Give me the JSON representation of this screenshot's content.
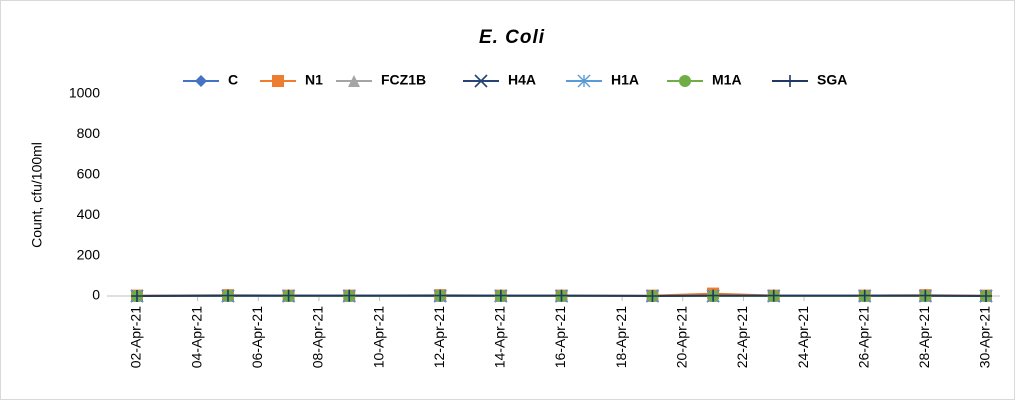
{
  "chart_data": {
    "type": "line",
    "title": "E. Coli",
    "y_label": "Count, cfu/100ml",
    "x": [
      "2021-04-02",
      "2021-04-05",
      "2021-04-07",
      "2021-04-09",
      "2021-04-12",
      "2021-04-14",
      "2021-04-16",
      "2021-04-19",
      "2021-04-21",
      "2021-04-23",
      "2021-04-26",
      "2021-04-28",
      "2021-04-30"
    ],
    "xlim": [
      "2021-04-02",
      "2021-04-30"
    ],
    "xticks": [
      {
        "value": "2021-04-02",
        "label": "02-Apr-21"
      },
      {
        "value": "2021-04-04",
        "label": "04-Apr-21"
      },
      {
        "value": "2021-04-06",
        "label": "06-Apr-21"
      },
      {
        "value": "2021-04-08",
        "label": "08-Apr-21"
      },
      {
        "value": "2021-04-10",
        "label": "10-Apr-21"
      },
      {
        "value": "2021-04-12",
        "label": "12-Apr-21"
      },
      {
        "value": "2021-04-14",
        "label": "14-Apr-21"
      },
      {
        "value": "2021-04-16",
        "label": "16-Apr-21"
      },
      {
        "value": "2021-04-18",
        "label": "18-Apr-21"
      },
      {
        "value": "2021-04-20",
        "label": "20-Apr-21"
      },
      {
        "value": "2021-04-22",
        "label": "22-Apr-21"
      },
      {
        "value": "2021-04-24",
        "label": "24-Apr-21"
      },
      {
        "value": "2021-04-26",
        "label": "26-Apr-21"
      },
      {
        "value": "2021-04-28",
        "label": "28-Apr-21"
      },
      {
        "value": "2021-04-30",
        "label": "30-Apr-21"
      }
    ],
    "ylim": [
      0,
      1000
    ],
    "yticks": [
      0,
      200,
      400,
      600,
      800,
      1000
    ],
    "grid": false,
    "legend": "top",
    "series": [
      {
        "name": "C",
        "color": "#4472c4",
        "marker": "diamond",
        "values": [
          0,
          2,
          1,
          0,
          2,
          0,
          0,
          0,
          2,
          0,
          0,
          2,
          0
        ]
      },
      {
        "name": "N1",
        "color": "#ed7d31",
        "marker": "square",
        "values": [
          2,
          4,
          2,
          2,
          4,
          2,
          2,
          2,
          12,
          2,
          2,
          4,
          2
        ]
      },
      {
        "name": "FCZ1B",
        "color": "#a5a5a5",
        "marker": "triangle",
        "values": [
          0,
          0,
          0,
          0,
          0,
          0,
          0,
          0,
          0,
          0,
          0,
          0,
          0
        ]
      },
      {
        "name": "H4A",
        "color": "#264478",
        "marker": "x",
        "values": [
          0,
          0,
          0,
          0,
          0,
          0,
          0,
          0,
          0,
          0,
          0,
          0,
          0
        ]
      },
      {
        "name": "H1A",
        "color": "#5b9bd5",
        "marker": "asterisk",
        "values": [
          0,
          0,
          0,
          0,
          0,
          0,
          0,
          0,
          0,
          0,
          0,
          0,
          0
        ]
      },
      {
        "name": "M1A",
        "color": "#70ad47",
        "marker": "circle",
        "values": [
          0,
          2,
          0,
          0,
          2,
          0,
          0,
          0,
          0,
          0,
          0,
          0,
          0
        ]
      },
      {
        "name": "SGA",
        "color": "#1f3864",
        "marker": "plus",
        "values": [
          0,
          2,
          2,
          2,
          2,
          2,
          2,
          0,
          2,
          2,
          2,
          2,
          0
        ]
      }
    ]
  }
}
